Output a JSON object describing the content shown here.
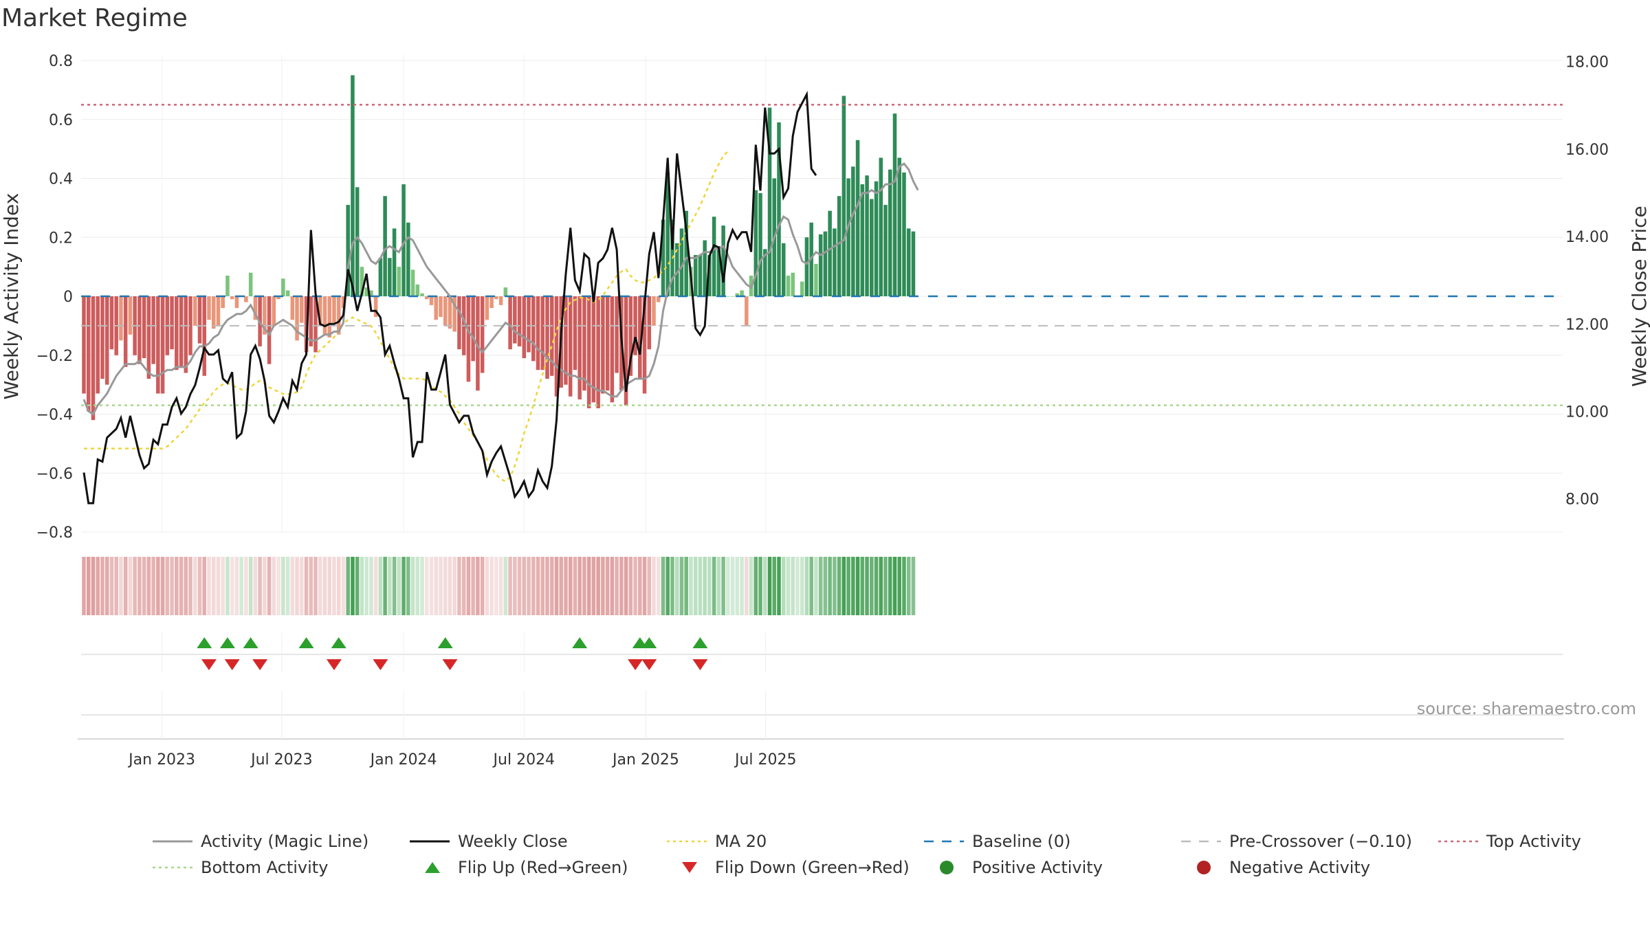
{
  "page": {
    "title": "Market Regime",
    "source": "source: sharemaestro.com"
  },
  "colors": {
    "pos_dark": "#2e8b57",
    "pos_light": "#7cc47c",
    "neg_dark": "#cd5c5c",
    "neg_light": "#e9967a",
    "magic_line": "#999999",
    "close_line": "#111111",
    "ma20": "#f0d43a",
    "baseline": "#1f77b4",
    "precross": "#bbbbbb",
    "top": "#cc6677",
    "bottom": "#a8d88a",
    "flip_up": "#2ca02c",
    "flip_down": "#d62728"
  },
  "chart_data": {
    "type": "bar",
    "start_date": "2022-09-05",
    "x_ticks": [
      "Jan 2023",
      "Jul 2023",
      "Jan 2024",
      "Jul 2024",
      "Jan 2025",
      "Jul 2025"
    ],
    "x_tick_dates": [
      "2023-01-01",
      "2023-07-01",
      "2024-01-01",
      "2024-07-01",
      "2025-01-01",
      "2025-07-01"
    ],
    "y_left": {
      "label": "Weekly Activity Index",
      "ylim": [
        -0.8,
        0.8
      ],
      "ticks": [
        "0.8",
        "0.6",
        "0.4",
        "0.2",
        "0",
        "−0.2",
        "−0.4",
        "−0.6",
        "−0.8"
      ],
      "tick_values": [
        0.8,
        0.6,
        0.4,
        0.2,
        0,
        -0.2,
        -0.4,
        -0.6,
        -0.8
      ]
    },
    "y_right": {
      "label": "Weekly Close Price",
      "ylim": [
        6.8,
        18.2
      ],
      "ticks": [
        "18.00",
        "16.00",
        "14.00",
        "12.00",
        "10.00",
        "8.00"
      ],
      "tick_values": [
        18,
        16,
        14,
        12,
        10,
        8
      ]
    },
    "reference_lines": {
      "baseline": 0,
      "pre_crossover": -0.1,
      "top_activity": 0.65,
      "bottom_activity": -0.37
    },
    "activity": [
      -0.33,
      -0.39,
      -0.42,
      -0.33,
      -0.28,
      -0.3,
      -0.18,
      -0.2,
      -0.15,
      -0.24,
      -0.13,
      -0.2,
      -0.23,
      -0.21,
      -0.28,
      -0.23,
      -0.33,
      -0.33,
      -0.2,
      -0.18,
      -0.25,
      -0.24,
      -0.26,
      -0.2,
      -0.1,
      -0.16,
      -0.27,
      -0.08,
      -0.11,
      -0.1,
      -0.04,
      0.07,
      -0.01,
      -0.04,
      0.0,
      -0.02,
      0.08,
      -0.08,
      -0.17,
      -0.13,
      -0.23,
      -0.1,
      -0.01,
      0.06,
      0.02,
      -0.08,
      -0.15,
      -0.09,
      -0.19,
      -0.17,
      -0.19,
      -0.1,
      -0.13,
      -0.14,
      -0.09,
      -0.13,
      -0.04,
      0.31,
      0.75,
      0.37,
      0.1,
      0.03,
      0.02,
      -0.07,
      0.13,
      0.34,
      0.13,
      0.23,
      0.1,
      0.38,
      0.25,
      0.09,
      0.04,
      0.01,
      -0.01,
      -0.03,
      -0.08,
      -0.07,
      -0.1,
      -0.11,
      -0.12,
      -0.18,
      -0.2,
      -0.29,
      -0.22,
      -0.32,
      -0.26,
      -0.08,
      -0.04,
      -0.01,
      -0.03,
      0.03,
      -0.18,
      -0.16,
      -0.17,
      -0.21,
      -0.19,
      -0.22,
      -0.25,
      -0.25,
      -0.28,
      -0.27,
      -0.34,
      -0.31,
      -0.3,
      -0.34,
      -0.25,
      -0.35,
      -0.32,
      -0.38,
      -0.36,
      -0.38,
      -0.33,
      -0.32,
      -0.36,
      -0.26,
      -0.32,
      -0.37,
      -0.27,
      -0.2,
      -0.28,
      -0.33,
      -0.18,
      -0.1,
      -0.02,
      0.26,
      0.42,
      0.26,
      0.18,
      0.23,
      0.29,
      0.1,
      0.14,
      0.14,
      0.19,
      0.14,
      0.27,
      0.17,
      0.24,
      0.0,
      0.0,
      0.01,
      0.02,
      -0.1,
      0.07,
      0.36,
      0.35,
      0.16,
      0.64,
      0.4,
      0.59,
      0.18,
      0.07,
      0.08,
      0.0,
      0.05,
      0.2,
      0.25,
      0.11,
      0.21,
      0.22,
      0.29,
      0.23,
      0.34,
      0.68,
      0.4,
      0.44,
      0.53,
      0.38,
      0.41,
      0.33,
      0.39,
      0.47,
      0.31,
      0.43,
      0.62,
      0.47,
      0.42,
      0.23,
      0.22
    ],
    "magic_line": [
      -0.35,
      -0.39,
      -0.4,
      -0.37,
      -0.35,
      -0.33,
      -0.3,
      -0.27,
      -0.25,
      -0.23,
      -0.23,
      -0.23,
      -0.22,
      -0.24,
      -0.26,
      -0.27,
      -0.27,
      -0.26,
      -0.25,
      -0.25,
      -0.24,
      -0.24,
      -0.24,
      -0.22,
      -0.19,
      -0.17,
      -0.17,
      -0.16,
      -0.14,
      -0.13,
      -0.1,
      -0.08,
      -0.07,
      -0.06,
      -0.06,
      -0.05,
      -0.03,
      -0.06,
      -0.09,
      -0.11,
      -0.13,
      -0.1,
      -0.09,
      -0.08,
      -0.09,
      -0.1,
      -0.12,
      -0.13,
      -0.14,
      -0.15,
      -0.15,
      -0.14,
      -0.13,
      -0.13,
      -0.12,
      -0.12,
      -0.09,
      0.1,
      0.18,
      0.2,
      0.18,
      0.15,
      0.12,
      0.11,
      0.13,
      0.16,
      0.17,
      0.16,
      0.15,
      0.18,
      0.2,
      0.19,
      0.16,
      0.13,
      0.1,
      0.08,
      0.06,
      0.04,
      0.02,
      0.0,
      -0.03,
      -0.05,
      -0.08,
      -0.12,
      -0.14,
      -0.17,
      -0.19,
      -0.17,
      -0.15,
      -0.13,
      -0.11,
      -0.09,
      -0.1,
      -0.12,
      -0.13,
      -0.14,
      -0.15,
      -0.16,
      -0.18,
      -0.19,
      -0.21,
      -0.22,
      -0.24,
      -0.25,
      -0.26,
      -0.27,
      -0.27,
      -0.28,
      -0.28,
      -0.3,
      -0.31,
      -0.32,
      -0.32,
      -0.33,
      -0.34,
      -0.34,
      -0.32,
      -0.3,
      -0.29,
      -0.28,
      -0.28,
      -0.28,
      -0.27,
      -0.23,
      -0.17,
      -0.05,
      0.02,
      0.06,
      0.08,
      0.1,
      0.13,
      0.13,
      0.13,
      0.14,
      0.15,
      0.15,
      0.16,
      0.16,
      0.17,
      0.14,
      0.1,
      0.08,
      0.06,
      0.04,
      0.03,
      0.07,
      0.12,
      0.14,
      0.15,
      0.2,
      0.24,
      0.27,
      0.26,
      0.21,
      0.17,
      0.12,
      0.11,
      0.13,
      0.15,
      0.14,
      0.15,
      0.16,
      0.17,
      0.18,
      0.19,
      0.24,
      0.28,
      0.31,
      0.35,
      0.35,
      0.36,
      0.35,
      0.36,
      0.38,
      0.38,
      0.39,
      0.44,
      0.45,
      0.43,
      0.39,
      0.36
    ],
    "weekly_close": [
      8.6,
      7.9,
      7.9,
      8.9,
      8.85,
      9.4,
      9.5,
      9.6,
      9.85,
      9.4,
      9.9,
      9.45,
      9.0,
      8.7,
      8.8,
      9.35,
      9.25,
      9.7,
      9.7,
      10.1,
      10.3,
      9.95,
      10.1,
      10.4,
      10.6,
      11.0,
      11.45,
      11.3,
      11.3,
      11.4,
      10.75,
      10.65,
      10.9,
      9.4,
      9.5,
      10.0,
      11.3,
      11.5,
      11.2,
      10.7,
      9.9,
      9.75,
      10.0,
      10.3,
      10.1,
      10.7,
      10.5,
      11.1,
      11.3,
      14.15,
      12.7,
      12.0,
      11.95,
      12.0,
      12.0,
      12.05,
      12.2,
      13.25,
      12.85,
      12.3,
      12.7,
      13.15,
      12.3,
      12.3,
      12.15,
      11.3,
      11.5,
      11.1,
      10.75,
      10.3,
      10.3,
      8.95,
      9.3,
      9.3,
      10.9,
      10.5,
      10.5,
      10.9,
      11.3,
      10.15,
      9.95,
      9.75,
      9.9,
      9.9,
      9.5,
      9.3,
      9.1,
      8.55,
      8.85,
      9.05,
      9.2,
      8.85,
      8.5,
      8.05,
      8.2,
      8.4,
      8.05,
      8.2,
      8.65,
      8.4,
      8.25,
      8.75,
      9.8,
      11.8,
      13.15,
      14.2,
      13.0,
      12.75,
      13.6,
      13.5,
      12.5,
      13.4,
      13.5,
      13.7,
      14.2,
      13.7,
      11.7,
      10.45,
      11.2,
      11.7,
      11.3,
      12.45,
      13.6,
      14.1,
      13.05,
      14.35,
      15.8,
      13.7,
      15.9,
      15.0,
      14.15,
      13.1,
      11.9,
      11.75,
      11.95,
      13.55,
      13.8,
      13.75,
      12.95,
      13.85,
      14.15,
      13.95,
      14.1,
      14.1,
      13.65,
      16.1,
      15.05,
      16.95,
      15.9,
      15.9,
      16.0,
      14.9,
      15.1,
      16.3,
      16.85,
      17.05,
      17.25,
      15.55,
      15.4
    ],
    "ma20": [
      9.15,
      9.15,
      9.15,
      9.15,
      9.15,
      9.15,
      9.15,
      9.15,
      9.15,
      9.15,
      9.15,
      9.15,
      9.15,
      9.15,
      9.15,
      9.15,
      9.15,
      9.15,
      9.2,
      9.3,
      9.4,
      9.5,
      9.6,
      9.75,
      9.9,
      10.05,
      10.2,
      10.3,
      10.45,
      10.55,
      10.62,
      10.65,
      10.6,
      10.55,
      10.5,
      10.5,
      10.55,
      10.65,
      10.7,
      10.65,
      10.55,
      10.5,
      10.45,
      10.4,
      10.4,
      10.4,
      10.45,
      10.55,
      10.85,
      11.1,
      11.3,
      11.4,
      11.5,
      11.6,
      11.7,
      11.85,
      12.0,
      12.1,
      12.15,
      12.1,
      12.05,
      12.0,
      11.95,
      11.8,
      11.6,
      11.4,
      11.2,
      11.0,
      10.85,
      10.75,
      10.75,
      10.75,
      10.75,
      10.75,
      10.7,
      10.6,
      10.5,
      10.45,
      10.35,
      10.25,
      10.1,
      9.95,
      9.75,
      9.6,
      9.45,
      9.3,
      9.1,
      8.9,
      8.7,
      8.55,
      8.45,
      8.4,
      8.5,
      8.75,
      9.1,
      9.5,
      9.8,
      10.15,
      10.5,
      10.85,
      11.2,
      11.5,
      11.85,
      12.15,
      12.35,
      12.5,
      12.55,
      12.6,
      12.6,
      12.55,
      12.5,
      12.55,
      12.65,
      12.8,
      12.95,
      13.1,
      13.2,
      13.25,
      13.1,
      13.0,
      12.95,
      12.95,
      13.0,
      13.05,
      13.15,
      13.2,
      13.35,
      13.5,
      13.7,
      13.9,
      14.1,
      14.3,
      14.5,
      14.7,
      14.95,
      15.2,
      15.45,
      15.65,
      15.85,
      15.95
    ],
    "flip_up_weeks": [
      26,
      31,
      36,
      48,
      55,
      78,
      107,
      120,
      122,
      133
    ],
    "flip_down_weeks": [
      27,
      32,
      38,
      54,
      64,
      79,
      119,
      122,
      133
    ],
    "legend": [
      {
        "label": "Activity (Magic Line)",
        "style": "line",
        "color": "#999999"
      },
      {
        "label": "Weekly Close",
        "style": "line",
        "color": "#111111"
      },
      {
        "label": "MA 20",
        "style": "dot",
        "color": "#f0d43a"
      },
      {
        "label": "Baseline (0)",
        "style": "dash",
        "color": "#1f77b4"
      },
      {
        "label": "Pre-Crossover (−0.10)",
        "style": "dash",
        "color": "#bbbbbb"
      },
      {
        "label": "Top Activity",
        "style": "dot",
        "color": "#cc6677"
      },
      {
        "label": "Bottom Activity",
        "style": "dot",
        "color": "#a8d88a"
      },
      {
        "label": "Flip Up (Red→Green)",
        "style": "tri-up",
        "color": "#2ca02c"
      },
      {
        "label": "Flip Down (Green→Red)",
        "style": "tri-down",
        "color": "#d62728"
      },
      {
        "label": "Positive Activity",
        "style": "circle",
        "color": "#2a8a2a"
      },
      {
        "label": "Negative Activity",
        "style": "circle",
        "color": "#b22222"
      }
    ]
  }
}
